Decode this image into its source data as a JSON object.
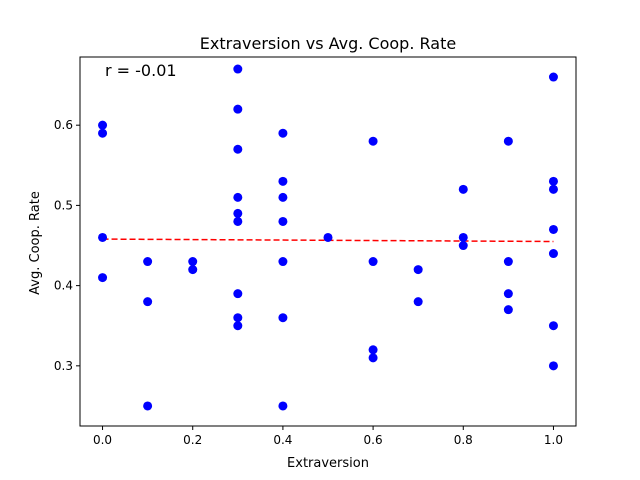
{
  "chart_data": {
    "type": "scatter",
    "title": "Extraversion vs Avg. Coop. Rate",
    "xlabel": "Extraversion",
    "ylabel": "Avg. Coop. Rate",
    "annotation": "r = -0.01",
    "xlim": [
      -0.05,
      1.05
    ],
    "ylim": [
      0.225,
      0.685
    ],
    "xticks": [
      0.0,
      0.2,
      0.4,
      0.6,
      0.8,
      1.0
    ],
    "xtick_labels": [
      "0.0",
      "0.2",
      "0.4",
      "0.6",
      "0.8",
      "1.0"
    ],
    "yticks": [
      0.3,
      0.4,
      0.5,
      0.6
    ],
    "ytick_labels": [
      "0.3",
      "0.4",
      "0.5",
      "0.6"
    ],
    "grid": false,
    "point_color": "#0000ff",
    "trend_color": "#ff0000",
    "trend_style": "dashed",
    "trend_line": {
      "x": [
        0.0,
        1.0
      ],
      "y": [
        0.458,
        0.455
      ]
    },
    "points": [
      [
        0.0,
        0.6
      ],
      [
        0.0,
        0.59
      ],
      [
        0.0,
        0.46
      ],
      [
        0.0,
        0.41
      ],
      [
        0.1,
        0.43
      ],
      [
        0.1,
        0.38
      ],
      [
        0.1,
        0.25
      ],
      [
        0.2,
        0.43
      ],
      [
        0.2,
        0.42
      ],
      [
        0.3,
        0.67
      ],
      [
        0.3,
        0.62
      ],
      [
        0.3,
        0.57
      ],
      [
        0.3,
        0.51
      ],
      [
        0.3,
        0.49
      ],
      [
        0.3,
        0.48
      ],
      [
        0.3,
        0.39
      ],
      [
        0.3,
        0.36
      ],
      [
        0.3,
        0.35
      ],
      [
        0.4,
        0.59
      ],
      [
        0.4,
        0.53
      ],
      [
        0.4,
        0.51
      ],
      [
        0.4,
        0.48
      ],
      [
        0.4,
        0.43
      ],
      [
        0.4,
        0.36
      ],
      [
        0.4,
        0.25
      ],
      [
        0.5,
        0.46
      ],
      [
        0.6,
        0.58
      ],
      [
        0.6,
        0.43
      ],
      [
        0.6,
        0.32
      ],
      [
        0.6,
        0.31
      ],
      [
        0.7,
        0.42
      ],
      [
        0.7,
        0.38
      ],
      [
        0.8,
        0.52
      ],
      [
        0.8,
        0.46
      ],
      [
        0.8,
        0.45
      ],
      [
        0.9,
        0.58
      ],
      [
        0.9,
        0.43
      ],
      [
        0.9,
        0.39
      ],
      [
        0.9,
        0.37
      ],
      [
        1.0,
        0.66
      ],
      [
        1.0,
        0.53
      ],
      [
        1.0,
        0.52
      ],
      [
        1.0,
        0.47
      ],
      [
        1.0,
        0.44
      ],
      [
        1.0,
        0.35
      ],
      [
        1.0,
        0.3
      ]
    ]
  }
}
